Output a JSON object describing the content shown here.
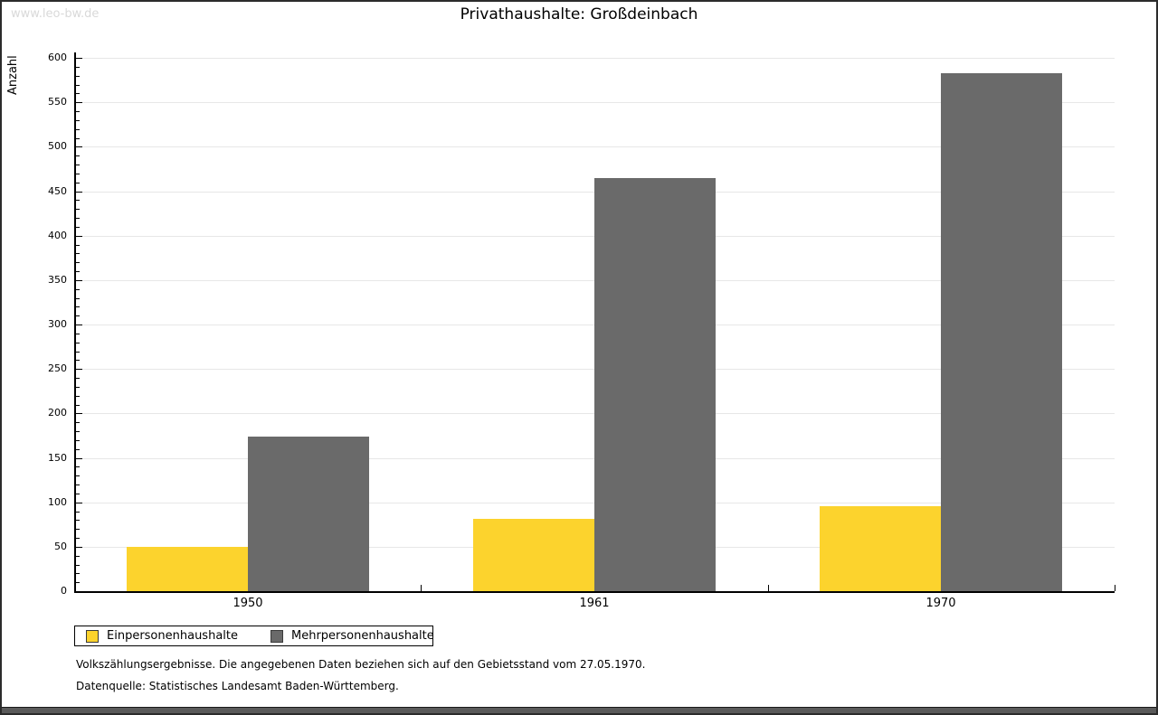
{
  "watermark": "www.leo-bw.de",
  "title": "Privathaushalte: Großdeinbach",
  "chart_data": {
    "type": "bar",
    "title": "Privathaushalte: Großdeinbach",
    "categories": [
      "1950",
      "1961",
      "1970"
    ],
    "series": [
      {
        "name": "Einpersonenhaushalte",
        "color": "#FCD32D",
        "values": [
          50,
          81,
          96
        ]
      },
      {
        "name": "Mehrpersonenhaushalte",
        "color": "#6A6A6A",
        "values": [
          174,
          465,
          583
        ]
      }
    ],
    "xlabel": "",
    "ylabel": "Anzahl",
    "ylim": [
      0,
      600
    ],
    "y_ticks": [
      0,
      50,
      100,
      150,
      200,
      250,
      300,
      350,
      400,
      450,
      500,
      550,
      600
    ],
    "y_minor_step": 10,
    "grid": true,
    "legend_position": "bottom-left",
    "bar_orientation": "vertical"
  },
  "legend": {
    "items": [
      {
        "label": "Einpersonenhaushalte",
        "color": "#FCD32D"
      },
      {
        "label": "Mehrpersonenhaushalte",
        "color": "#6A6A6A"
      }
    ]
  },
  "footer": {
    "line1": "Volkszählungsergebnisse. Die angegebenen Daten beziehen sich auf den Gebietsstand vom 27.05.1970.",
    "line2": "Datenquelle: Statistisches Landesamt Baden-Württemberg."
  },
  "colors": {
    "series_yellow": "#FCD32D",
    "series_gray": "#6A6A6A",
    "gridline": "#E7E7E7",
    "axis": "#000000",
    "watermark_text": "#D9D9D9",
    "frame": "#2B2B2B",
    "bottom_bar": "#5A5A5A"
  }
}
